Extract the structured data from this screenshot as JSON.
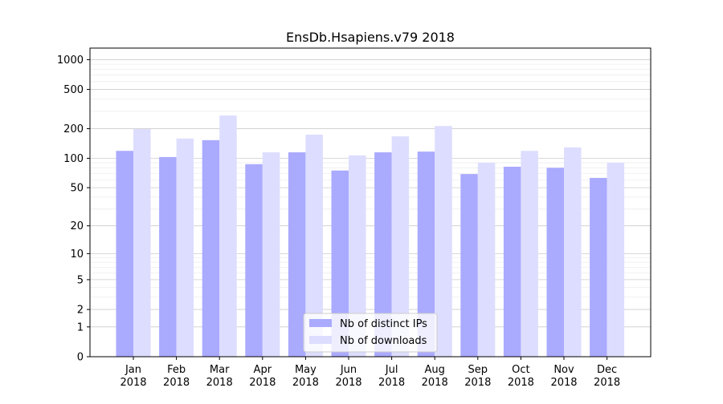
{
  "chart_data": {
    "type": "bar",
    "title": "EnsDb.Hsapiens.v79 2018",
    "xlabel": "",
    "ylabel": "",
    "yscale": "symlog",
    "ylim": [
      0,
      1300
    ],
    "yticks": [
      0,
      1,
      2,
      5,
      10,
      20,
      50,
      100,
      200,
      500,
      1000
    ],
    "categories": [
      "Jan\n2018",
      "Feb\n2018",
      "Mar\n2018",
      "Apr\n2018",
      "May\n2018",
      "Jun\n2018",
      "Jul\n2018",
      "Aug\n2018",
      "Sep\n2018",
      "Oct\n2018",
      "Nov\n2018",
      "Dec\n2018"
    ],
    "series": [
      {
        "name": "Nb of distinct IPs",
        "color": "#aaaaff",
        "values": [
          119,
          103,
          153,
          87,
          115,
          75,
          115,
          117,
          69,
          82,
          80,
          63
        ]
      },
      {
        "name": "Nb of downloads",
        "color": "#ddddff",
        "values": [
          198,
          159,
          272,
          115,
          174,
          107,
          167,
          213,
          90,
          119,
          129,
          90
        ]
      }
    ],
    "grid": true,
    "legend": "bottom-center"
  }
}
